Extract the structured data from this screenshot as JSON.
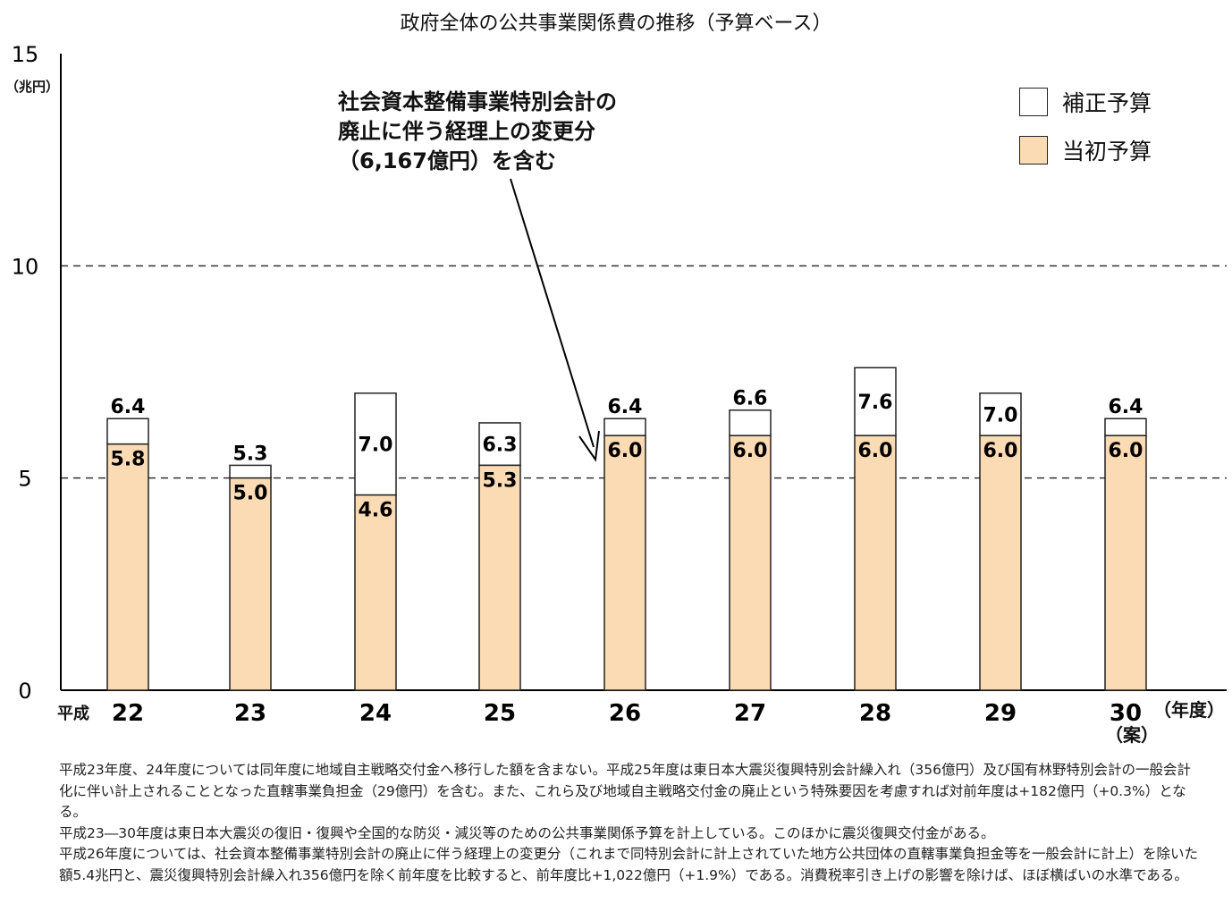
{
  "title": "政府全体の公共事業関係費の推移（予算ベース）",
  "unit": "（兆円）",
  "era_label": "平成",
  "year_unit": "（年度）",
  "proposal_label": "（案）",
  "legend": {
    "supplementary": "補正予算",
    "initial": "当初予算"
  },
  "annotation": [
    "社会資本整備事業特別会計の",
    "廃止に伴う経理上の変更分",
    "（6,167億円）を含む"
  ],
  "colors": {
    "initial": "#FADBB4",
    "supplementary": "#FFFFFF",
    "axis": "#000000"
  },
  "chart_data": {
    "type": "bar",
    "categories": [
      "22",
      "23",
      "24",
      "25",
      "26",
      "27",
      "28",
      "29",
      "30"
    ],
    "series": [
      {
        "name": "当初予算",
        "values": [
          5.8,
          5.0,
          4.6,
          5.3,
          6.0,
          6.0,
          6.0,
          6.0,
          6.0
        ]
      },
      {
        "name": "補正予算",
        "totals": [
          6.4,
          5.3,
          7.0,
          6.3,
          6.4,
          6.6,
          7.6,
          7.0,
          6.4
        ]
      }
    ],
    "initial_labels": [
      "5.8",
      "5.0",
      "4.6",
      "5.3",
      "6.0",
      "6.0",
      "6.0",
      "6.0",
      "6.0"
    ],
    "total_labels": [
      "6.4",
      "5.3",
      "7.0",
      "6.3",
      "6.4",
      "6.6",
      "7.6",
      "7.0",
      "6.4"
    ],
    "yticks": [
      "0",
      "5",
      "10",
      "15"
    ],
    "ylim": [
      0,
      15
    ],
    "gridlines": [
      5,
      10
    ],
    "stacked": true
  },
  "notes": [
    "平成23年度、24年度については同年度に地域自主戦略交付金へ移行した額を含まない。平成25年度は東日本大震災復興特別会計繰入れ（356億円）及び国有林野特別会計の一般会計化に伴い計上されることとなった直轄事業負担金（29億円）を含む。また、これら及び地域自主戦略交付金の廃止という特殊要因を考慮すれば対前年度は+182億円（+0.3%）となる。",
    "平成23―30年度は東日本大震災の復旧・復興や全国的な防災・減災等のための公共事業関係予算を計上している。このほかに震災復興交付金がある。",
    "平成26年度については、社会資本整備事業特別会計の廃止に伴う経理上の変更分（これまで同特別会計に計上されていた地方公共団体の直轄事業負担金等を一般会計に計上）を除いた額5.4兆円と、震災復興特別会計繰入れ356億円を除く前年度を比較すると、前年度比+1,022億円（+1.9%）である。消費税率引き上げの影響を除けば、ほぼ横ばいの水準である。"
  ]
}
